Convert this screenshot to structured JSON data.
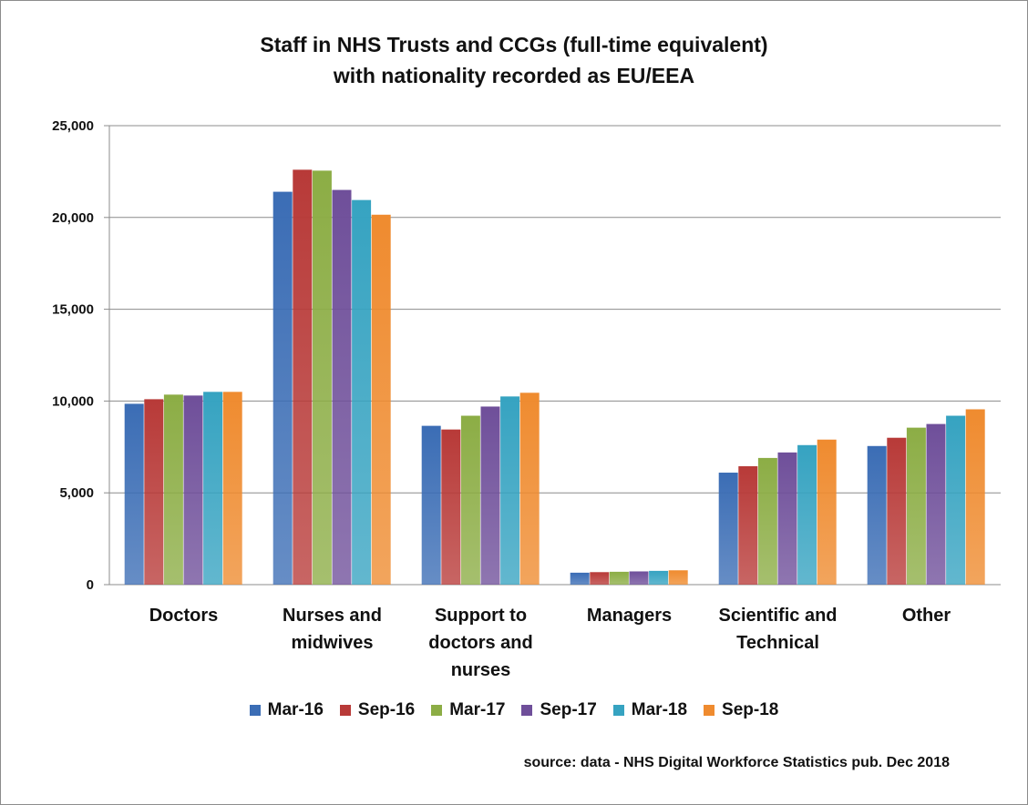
{
  "chart_data": {
    "type": "bar",
    "title_line1": "Staff in NHS Trusts and CCGs (full-time equivalent)",
    "title_line2": "with nationality recorded as EU/EEA",
    "categories": [
      [
        "Doctors"
      ],
      [
        "Nurses and",
        "midwives"
      ],
      [
        "Support to",
        "doctors and",
        "nurses"
      ],
      [
        "Managers"
      ],
      [
        "Scientific and",
        "Technical"
      ],
      [
        "Other"
      ]
    ],
    "series": [
      {
        "name": "Mar-16",
        "color": "#3b6db5",
        "values": [
          9850,
          21400,
          8650,
          650,
          6100,
          7550
        ]
      },
      {
        "name": "Sep-16",
        "color": "#b83a38",
        "values": [
          10100,
          22600,
          8450,
          680,
          6450,
          8000
        ]
      },
      {
        "name": "Mar-17",
        "color": "#8cad45",
        "values": [
          10350,
          22550,
          9200,
          700,
          6900,
          8550
        ]
      },
      {
        "name": "Sep-17",
        "color": "#6f4f9a",
        "values": [
          10300,
          21500,
          9700,
          720,
          7200,
          8750
        ]
      },
      {
        "name": "Mar-18",
        "color": "#36a3c1",
        "values": [
          10500,
          20950,
          10250,
          750,
          7600,
          9200
        ]
      },
      {
        "name": "Sep-18",
        "color": "#ef8b2f",
        "values": [
          10500,
          20150,
          10450,
          780,
          7900,
          9550
        ]
      }
    ],
    "ylim": [
      0,
      25000
    ],
    "yticks": [
      0,
      5000,
      10000,
      15000,
      20000,
      25000
    ],
    "ytick_labels": [
      "0",
      "5,000",
      "10,000",
      "15,000",
      "20,000",
      "25,000"
    ],
    "xlabel": "",
    "ylabel": "",
    "grid": true,
    "legend_position": "bottom"
  },
  "source_note": "source: data - NHS Digital Workforce Statistics pub. Dec 2018"
}
